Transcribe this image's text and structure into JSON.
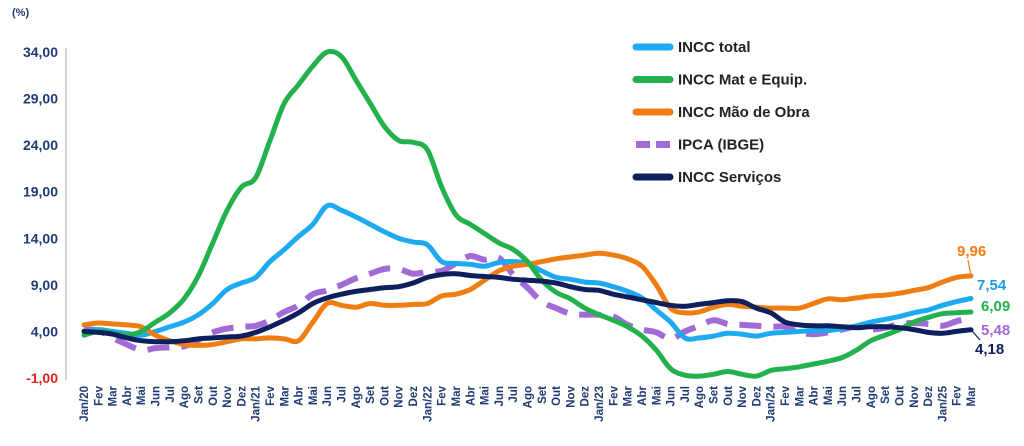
{
  "chart_data": {
    "type": "line",
    "unit_label": "(%)",
    "x": [
      "Jan/20",
      "Fev",
      "Mar",
      "Abr",
      "Mai",
      "Jun",
      "Jul",
      "Ago",
      "Set",
      "Out",
      "Nov",
      "Dez",
      "Jan/21",
      "Fev",
      "Mar",
      "Abr",
      "Mai",
      "Jun",
      "Jul",
      "Ago",
      "Set",
      "Out",
      "Nov",
      "Dez",
      "Jan/22",
      "Fev",
      "Mar",
      "Abr",
      "Mai",
      "Jun",
      "Jul",
      "Ago",
      "Set",
      "Out",
      "Nov",
      "Dez",
      "Jan/23",
      "Fev",
      "Mar",
      "Abr",
      "Mai",
      "Jun",
      "Jul",
      "Ago",
      "Set",
      "Out",
      "Nov",
      "Dez",
      "Jan/24",
      "Fev",
      "Mar",
      "Abr",
      "Mai",
      "Jun",
      "Jul",
      "Ago",
      "Set",
      "Out",
      "Nov",
      "Dez",
      "Jan/25",
      "Fev",
      "Mar"
    ],
    "y_ticks": [
      "34,00",
      "29,00",
      "24,00",
      "19,00",
      "14,00",
      "9,00",
      "4,00",
      "-1,00"
    ],
    "ylim": [
      -1,
      34
    ],
    "grid": false,
    "legend_position": "top-right",
    "series": [
      {
        "name": "INCC total",
        "color": "#1eaaf1",
        "dash": false,
        "end_label": "7,54",
        "values": [
          4.0,
          4.2,
          4.0,
          3.8,
          3.6,
          4.0,
          4.5,
          5.0,
          5.8,
          7.0,
          8.5,
          9.2,
          9.8,
          11.5,
          12.8,
          14.2,
          15.5,
          17.5,
          17.0,
          16.3,
          15.5,
          14.7,
          14.0,
          13.6,
          13.3,
          11.5,
          11.3,
          11.2,
          11.0,
          11.4,
          11.5,
          11.3,
          10.5,
          9.8,
          9.6,
          9.3,
          9.2,
          8.8,
          8.3,
          7.6,
          6.3,
          5.0,
          3.3,
          3.3,
          3.5,
          3.8,
          3.7,
          3.5,
          3.8,
          3.9,
          4.0,
          4.1,
          4.1,
          4.3,
          4.6,
          5.0,
          5.3,
          5.6,
          6.0,
          6.3,
          6.8,
          7.2,
          7.54
        ]
      },
      {
        "name": "INCC Mat e Equip.",
        "color": "#22b14c",
        "dash": false,
        "end_label": "6,09",
        "values": [
          3.6,
          4.0,
          3.8,
          3.6,
          4.0,
          5.0,
          6.0,
          7.5,
          10.0,
          13.5,
          17.0,
          19.5,
          20.5,
          24.5,
          28.5,
          30.5,
          32.5,
          34.0,
          33.5,
          31.0,
          28.5,
          26.0,
          24.5,
          24.3,
          23.5,
          19.5,
          16.5,
          15.5,
          14.5,
          13.5,
          12.8,
          11.5,
          9.5,
          8.2,
          7.5,
          6.5,
          5.8,
          5.2,
          4.5,
          3.5,
          2.0,
          0.0,
          -0.7,
          -0.8,
          -0.6,
          -0.3,
          -0.6,
          -0.8,
          -0.2,
          0.0,
          0.2,
          0.5,
          0.8,
          1.2,
          2.0,
          3.0,
          3.6,
          4.2,
          5.0,
          5.5,
          5.9,
          6.0,
          6.09
        ]
      },
      {
        "name": "INCC Mão de Obra",
        "color": "#f07d12",
        "dash": false,
        "end_label": "9,96",
        "values": [
          4.7,
          4.9,
          4.8,
          4.7,
          4.5,
          3.6,
          3.0,
          2.6,
          2.5,
          2.6,
          2.9,
          3.2,
          3.2,
          3.3,
          3.2,
          3.0,
          5.0,
          7.0,
          6.8,
          6.6,
          7.0,
          6.8,
          6.8,
          6.9,
          7.0,
          7.8,
          8.0,
          8.5,
          9.5,
          10.5,
          11.0,
          11.2,
          11.5,
          11.8,
          12.0,
          12.2,
          12.4,
          12.2,
          11.8,
          11.0,
          9.0,
          6.5,
          6.0,
          6.1,
          6.6,
          6.9,
          6.7,
          6.6,
          6.5,
          6.5,
          6.5,
          7.0,
          7.5,
          7.4,
          7.6,
          7.8,
          7.9,
          8.1,
          8.4,
          8.7,
          9.3,
          9.8,
          9.96
        ]
      },
      {
        "name": "IPCA (IBGE)",
        "color": "#a26ad6",
        "dash": true,
        "end_label": "5,48",
        "values": [
          4.2,
          4.1,
          3.3,
          2.6,
          2.0,
          2.2,
          2.3,
          2.4,
          3.1,
          3.9,
          4.3,
          4.5,
          4.6,
          5.2,
          6.1,
          6.8,
          8.0,
          8.4,
          9.0,
          9.7,
          10.2,
          10.7,
          10.7,
          10.2,
          10.4,
          10.5,
          11.3,
          12.1,
          11.7,
          11.9,
          10.1,
          8.7,
          7.2,
          6.5,
          5.9,
          5.8,
          5.8,
          5.6,
          4.7,
          4.2,
          3.9,
          3.2,
          4.0,
          4.6,
          5.2,
          4.8,
          4.7,
          4.6,
          4.5,
          4.5,
          3.9,
          3.7,
          3.9,
          4.2,
          4.5,
          4.2,
          4.4,
          4.8,
          4.9,
          4.8,
          4.6,
          5.1,
          5.48
        ]
      },
      {
        "name": "INCC Serviços",
        "color": "#0d1f5c",
        "dash": false,
        "end_label": "4,18",
        "values": [
          4.0,
          3.9,
          3.7,
          3.3,
          3.0,
          2.9,
          2.9,
          3.0,
          3.2,
          3.3,
          3.4,
          3.5,
          3.9,
          4.5,
          5.2,
          6.0,
          7.0,
          7.6,
          8.0,
          8.3,
          8.5,
          8.7,
          8.8,
          9.2,
          9.8,
          10.1,
          10.2,
          10.0,
          9.9,
          9.8,
          9.6,
          9.5,
          9.4,
          9.2,
          8.8,
          8.5,
          8.4,
          8.0,
          7.7,
          7.4,
          7.1,
          6.8,
          6.7,
          6.9,
          7.1,
          7.3,
          7.2,
          6.5,
          6.0,
          5.0,
          4.7,
          4.6,
          4.6,
          4.5,
          4.4,
          4.5,
          4.5,
          4.4,
          4.2,
          3.9,
          3.8,
          4.0,
          4.18
        ]
      }
    ]
  }
}
